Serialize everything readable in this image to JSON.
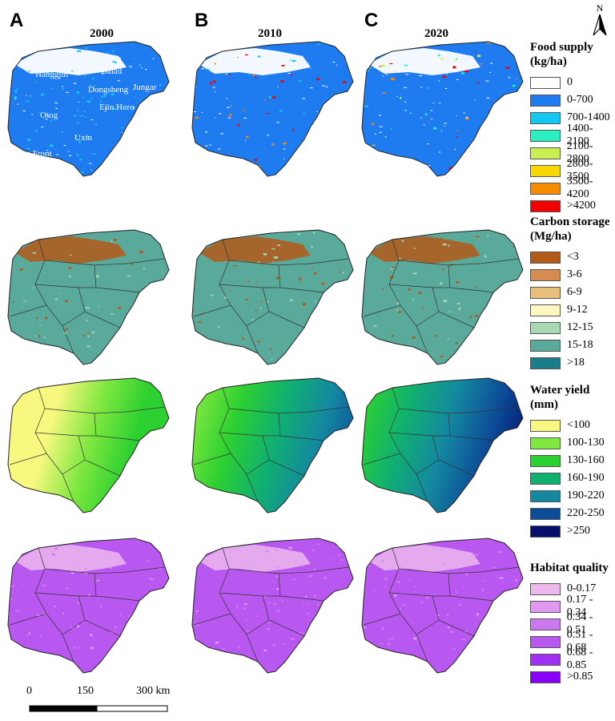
{
  "panels": [
    {
      "letter": "A",
      "year": "2000"
    },
    {
      "letter": "B",
      "year": "2010"
    },
    {
      "letter": "C",
      "year": "2020"
    }
  ],
  "place_names": [
    "Hanggjin",
    "Dalad",
    "Dongsheng",
    "Jungar",
    "Ejin Horo",
    "Otog",
    "Uxin",
    "Otog Front"
  ],
  "north_label": "N",
  "legends": [
    {
      "title": "Food supply\n(kg/ha)",
      "items": [
        {
          "label": "0",
          "color": "#ffffff"
        },
        {
          "label": "0-700",
          "color": "#1e7cf0"
        },
        {
          "label": "700-1400",
          "color": "#12c8f0"
        },
        {
          "label": "1400-2100",
          "color": "#2af0c0"
        },
        {
          "label": "2100-2800",
          "color": "#c8f050"
        },
        {
          "label": "2800-3500",
          "color": "#f8d800"
        },
        {
          "label": "3500-4200",
          "color": "#f88c00"
        },
        {
          "label": ">4200",
          "color": "#f00000"
        }
      ]
    },
    {
      "title": "Carbon storage\n(Mg/ha)",
      "items": [
        {
          "label": "<3",
          "color": "#b45a18"
        },
        {
          "label": "3-6",
          "color": "#d68c50"
        },
        {
          "label": "6-9",
          "color": "#e8c07c"
        },
        {
          "label": "9-12",
          "color": "#fcf8c0"
        },
        {
          "label": "12-15",
          "color": "#a8d8b4"
        },
        {
          "label": "15-18",
          "color": "#5aaa9c"
        },
        {
          "label": ">18",
          "color": "#1a7c88"
        }
      ]
    },
    {
      "title": "Water yield\n(mm)",
      "items": [
        {
          "label": "<100",
          "color": "#f8f880"
        },
        {
          "label": "100-130",
          "color": "#80e840"
        },
        {
          "label": "130-160",
          "color": "#2cd030"
        },
        {
          "label": "160-190",
          "color": "#10b070"
        },
        {
          "label": "190-220",
          "color": "#1488a0"
        },
        {
          "label": "220-250",
          "color": "#0c4c98"
        },
        {
          "label": ">250",
          "color": "#06106c"
        }
      ]
    },
    {
      "title": "Habitat quality",
      "items": [
        {
          "label": "0-0.17",
          "color": "#ecb8ec"
        },
        {
          "label": "0.17 - 0.34",
          "color": "#e098f0"
        },
        {
          "label": "0.34 - 0.51",
          "color": "#cc78f0"
        },
        {
          "label": "0.51 - 0.68",
          "color": "#b858f0"
        },
        {
          "label": "0.68 - 0.85",
          "color": "#a030f4"
        },
        {
          "label": ">0.85",
          "color": "#8800f8"
        }
      ]
    }
  ],
  "scale_bar": {
    "labels": [
      "0",
      "150",
      "300 km"
    ]
  }
}
